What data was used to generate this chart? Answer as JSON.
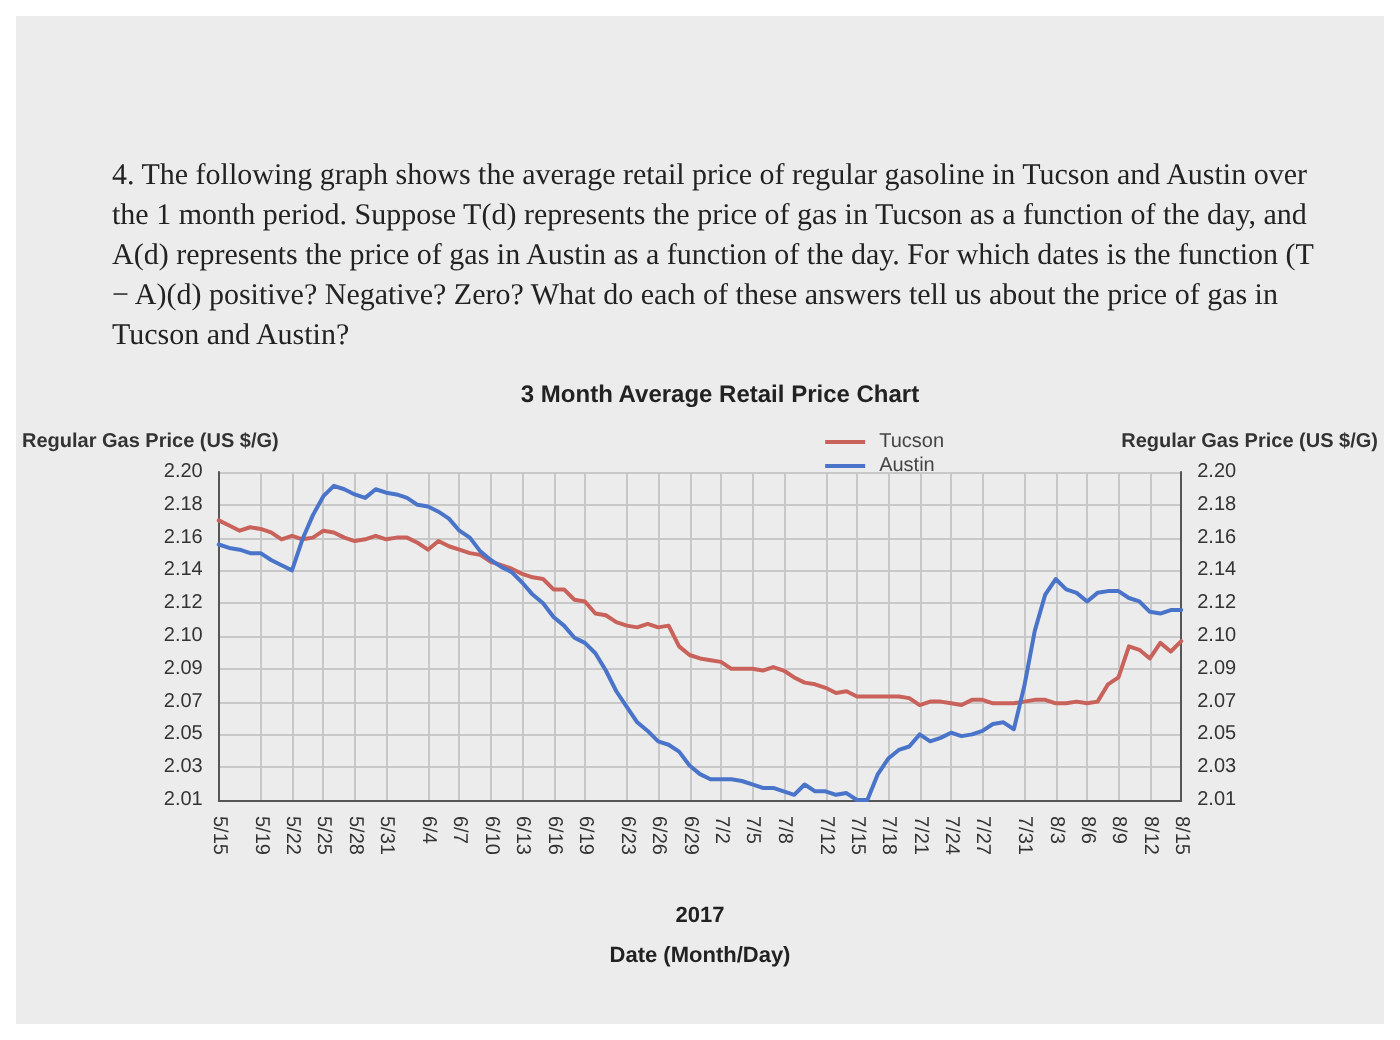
{
  "chart_data": {
    "type": "line",
    "title": "3 Month Average Retail Price Chart",
    "annotations": [
      "4. The following graph shows the average retail price of regular gasoline in Tucson and Austin over the 1 month period. Suppose T(d) represents the price of gas in Tucson as a function of the day, and A(d) represents the price of gas in Austin as a function of the day. For which dates is the function (T − A)(d) positive? Negative? Zero? What do each of these answers tell us about the price of gas in Tucson and Austin?"
    ],
    "xlabel": "2017\nDate (Month/Day)",
    "ylabel": "Regular Gas Price (US $/G)",
    "y2label": "Regular Gas Price (US $/G)",
    "x": [
      "2017-05-15",
      "2017-05-16",
      "2017-05-17",
      "2017-05-18",
      "2017-05-19",
      "2017-05-20",
      "2017-05-21",
      "2017-05-22",
      "2017-05-23",
      "2017-05-24",
      "2017-05-25",
      "2017-05-26",
      "2017-05-27",
      "2017-05-28",
      "2017-05-29",
      "2017-05-30",
      "2017-05-31",
      "2017-06-01",
      "2017-06-02",
      "2017-06-03",
      "2017-06-04",
      "2017-06-05",
      "2017-06-06",
      "2017-06-07",
      "2017-06-08",
      "2017-06-09",
      "2017-06-10",
      "2017-06-11",
      "2017-06-12",
      "2017-06-13",
      "2017-06-14",
      "2017-06-15",
      "2017-06-16",
      "2017-06-17",
      "2017-06-18",
      "2017-06-19",
      "2017-06-20",
      "2017-06-21",
      "2017-06-22",
      "2017-06-23",
      "2017-06-24",
      "2017-06-25",
      "2017-06-26",
      "2017-06-27",
      "2017-06-28",
      "2017-06-29",
      "2017-06-30",
      "2017-07-01",
      "2017-07-02",
      "2017-07-03",
      "2017-07-04",
      "2017-07-05",
      "2017-07-06",
      "2017-07-07",
      "2017-07-08",
      "2017-07-09",
      "2017-07-10",
      "2017-07-11",
      "2017-07-12",
      "2017-07-13",
      "2017-07-14",
      "2017-07-15",
      "2017-07-16",
      "2017-07-17",
      "2017-07-18",
      "2017-07-19",
      "2017-07-20",
      "2017-07-21",
      "2017-07-22",
      "2017-07-23",
      "2017-07-24",
      "2017-07-25",
      "2017-07-26",
      "2017-07-27",
      "2017-07-28",
      "2017-07-29",
      "2017-07-30",
      "2017-07-31",
      "2017-08-01",
      "2017-08-02",
      "2017-08-03",
      "2017-08-04",
      "2017-08-05",
      "2017-08-06",
      "2017-08-07",
      "2017-08-08",
      "2017-08-09",
      "2017-08-10",
      "2017-08-11",
      "2017-08-12",
      "2017-08-13",
      "2017-08-14",
      "2017-08-15"
    ],
    "series": [
      {
        "name": "Tucson",
        "color": "#c9625a",
        "values": [
          2.172,
          2.169,
          2.166,
          2.168,
          2.167,
          2.165,
          2.161,
          2.163,
          2.161,
          2.162,
          2.166,
          2.165,
          2.162,
          2.16,
          2.161,
          2.163,
          2.161,
          2.162,
          2.162,
          2.159,
          2.155,
          2.16,
          2.157,
          2.155,
          2.153,
          2.152,
          2.148,
          2.146,
          2.144,
          2.141,
          2.139,
          2.138,
          2.132,
          2.132,
          2.126,
          2.125,
          2.118,
          2.117,
          2.113,
          2.111,
          2.11,
          2.112,
          2.11,
          2.111,
          2.099,
          2.094,
          2.092,
          2.091,
          2.09,
          2.086,
          2.086,
          2.086,
          2.085,
          2.087,
          2.085,
          2.081,
          2.078,
          2.077,
          2.075,
          2.072,
          2.073,
          2.07,
          2.07,
          2.07,
          2.07,
          2.07,
          2.069,
          2.065,
          2.067,
          2.067,
          2.066,
          2.065,
          2.068,
          2.068,
          2.066,
          2.066,
          2.066,
          2.067,
          2.068,
          2.068,
          2.066,
          2.066,
          2.067,
          2.066,
          2.067,
          2.077,
          2.081,
          2.099,
          2.097,
          2.092,
          2.101,
          2.096,
          2.102
        ]
      },
      {
        "name": "Austin",
        "color": "#4a74c9",
        "values": [
          2.158,
          2.156,
          2.155,
          2.153,
          2.153,
          2.149,
          2.146,
          2.143,
          2.161,
          2.175,
          2.186,
          2.192,
          2.19,
          2.187,
          2.185,
          2.19,
          2.188,
          2.187,
          2.185,
          2.181,
          2.18,
          2.177,
          2.173,
          2.166,
          2.162,
          2.154,
          2.149,
          2.145,
          2.142,
          2.136,
          2.129,
          2.124,
          2.116,
          2.111,
          2.104,
          2.101,
          2.095,
          2.085,
          2.073,
          2.064,
          2.055,
          2.05,
          2.044,
          2.042,
          2.038,
          2.03,
          2.025,
          2.022,
          2.022,
          2.022,
          2.021,
          2.019,
          2.017,
          2.017,
          2.015,
          2.013,
          2.019,
          2.015,
          2.015,
          2.013,
          2.014,
          2.01,
          2.01,
          2.025,
          2.034,
          2.039,
          2.041,
          2.048,
          2.044,
          2.046,
          2.049,
          2.047,
          2.048,
          2.05,
          2.054,
          2.055,
          2.051,
          2.076,
          2.108,
          2.129,
          2.138,
          2.132,
          2.13,
          2.125,
          2.13,
          2.131,
          2.131,
          2.127,
          2.125,
          2.119,
          2.118,
          2.12,
          2.12
        ]
      }
    ],
    "xlim": [
      "2017-05-15",
      "2017-08-15"
    ],
    "xticks": [
      {
        "value": "2017-05-15",
        "label": "5/15"
      },
      {
        "value": "2017-05-19",
        "label": "5/19"
      },
      {
        "value": "2017-05-22",
        "label": "5/22"
      },
      {
        "value": "2017-05-25",
        "label": "5/25"
      },
      {
        "value": "2017-05-28",
        "label": "5/28"
      },
      {
        "value": "2017-05-31",
        "label": "5/31"
      },
      {
        "value": "2017-06-04",
        "label": "6/4"
      },
      {
        "value": "2017-06-07",
        "label": "6/7"
      },
      {
        "value": "2017-06-10",
        "label": "6/10"
      },
      {
        "value": "2017-06-13",
        "label": "6/13"
      },
      {
        "value": "2017-06-16",
        "label": "6/16"
      },
      {
        "value": "2017-06-19",
        "label": "6/19"
      },
      {
        "value": "2017-06-23",
        "label": "6/23"
      },
      {
        "value": "2017-06-26",
        "label": "6/26"
      },
      {
        "value": "2017-06-29",
        "label": "6/29"
      },
      {
        "value": "2017-07-02",
        "label": "7/2"
      },
      {
        "value": "2017-07-05",
        "label": "7/5"
      },
      {
        "value": "2017-07-08",
        "label": "7/8"
      },
      {
        "value": "2017-07-12",
        "label": "7/12"
      },
      {
        "value": "2017-07-15",
        "label": "7/15"
      },
      {
        "value": "2017-07-18",
        "label": "7/18"
      },
      {
        "value": "2017-07-21",
        "label": "7/21"
      },
      {
        "value": "2017-07-24",
        "label": "7/24"
      },
      {
        "value": "2017-07-27",
        "label": "7/27"
      },
      {
        "value": "2017-07-31",
        "label": "7/31"
      },
      {
        "value": "2017-08-03",
        "label": "8/3"
      },
      {
        "value": "2017-08-06",
        "label": "8/6"
      },
      {
        "value": "2017-08-09",
        "label": "8/9"
      },
      {
        "value": "2017-08-12",
        "label": "8/12"
      },
      {
        "value": "2017-08-15",
        "label": "8/15"
      }
    ],
    "ylim": [
      2.01,
      2.2
    ],
    "yticks": [
      {
        "value": 2.01,
        "label": "2.01"
      },
      {
        "value": 2.029,
        "label": "2.03"
      },
      {
        "value": 2.048,
        "label": "2.05"
      },
      {
        "value": 2.067,
        "label": "2.07"
      },
      {
        "value": 2.086,
        "label": "2.09"
      },
      {
        "value": 2.105,
        "label": "2.10"
      },
      {
        "value": 2.124,
        "label": "2.12"
      },
      {
        "value": 2.143,
        "label": "2.14"
      },
      {
        "value": 2.162,
        "label": "2.16"
      },
      {
        "value": 2.181,
        "label": "2.18"
      },
      {
        "value": 2.2,
        "label": "2.20"
      }
    ],
    "y2lim": [
      2.01,
      2.2
    ],
    "y2ticks": [
      {
        "value": 2.01,
        "label": "2.01"
      },
      {
        "value": 2.029,
        "label": "2.03"
      },
      {
        "value": 2.048,
        "label": "2.05"
      },
      {
        "value": 2.067,
        "label": "2.07"
      },
      {
        "value": 2.086,
        "label": "2.09"
      },
      {
        "value": 2.105,
        "label": "2.10"
      },
      {
        "value": 2.124,
        "label": "2.12"
      },
      {
        "value": 2.143,
        "label": "2.14"
      },
      {
        "value": 2.162,
        "label": "2.16"
      },
      {
        "value": 2.181,
        "label": "2.18"
      },
      {
        "value": 2.2,
        "label": "2.20"
      }
    ],
    "grid": true,
    "legend": "top right",
    "marker": "none",
    "line_style": "solid"
  }
}
